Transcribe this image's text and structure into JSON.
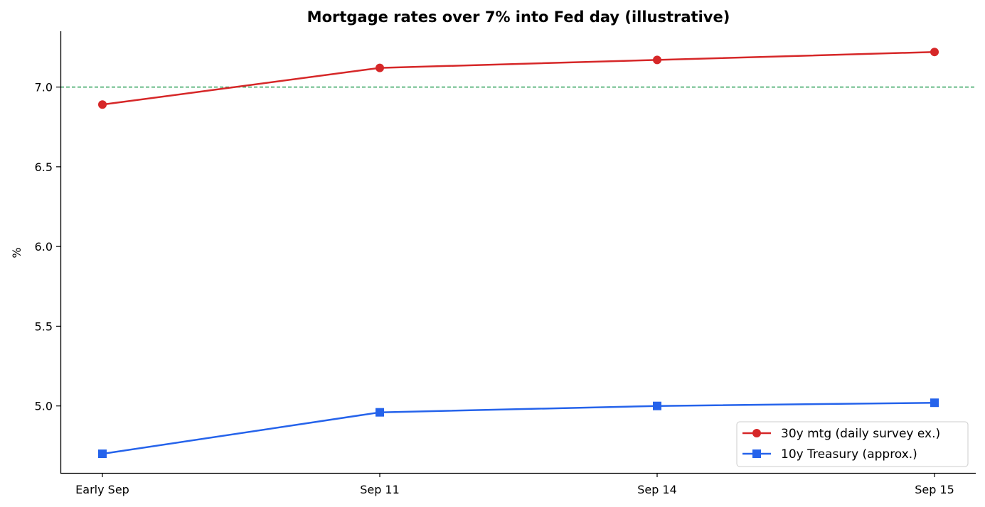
{
  "chart_data": {
    "type": "line",
    "title": "Mortgage rates over 7% into Fed day (illustrative)",
    "xlabel": "",
    "ylabel": "%",
    "categories": [
      "Early Sep",
      "Sep 11",
      "Sep 14",
      "Sep 15"
    ],
    "ylim": [
      4.58,
      7.35
    ],
    "yticks": [
      5.0,
      5.5,
      6.0,
      6.5,
      7.0
    ],
    "ytick_labels": [
      "5.0",
      "5.5",
      "6.0",
      "6.5",
      "7.0"
    ],
    "grid": false,
    "legend_position": "bottom-right",
    "reference_line": {
      "y": 7.0,
      "color": "#2ca05a",
      "style": "dashed"
    },
    "series": [
      {
        "name": "30y mtg (daily survey ex.)",
        "values": [
          6.89,
          7.12,
          7.17,
          7.22
        ],
        "color": "#d62728",
        "marker": "circle"
      },
      {
        "name": "10y Treasury (approx.)",
        "values": [
          4.7,
          4.96,
          5.0,
          5.02
        ],
        "color": "#2563eb",
        "marker": "square"
      }
    ]
  }
}
